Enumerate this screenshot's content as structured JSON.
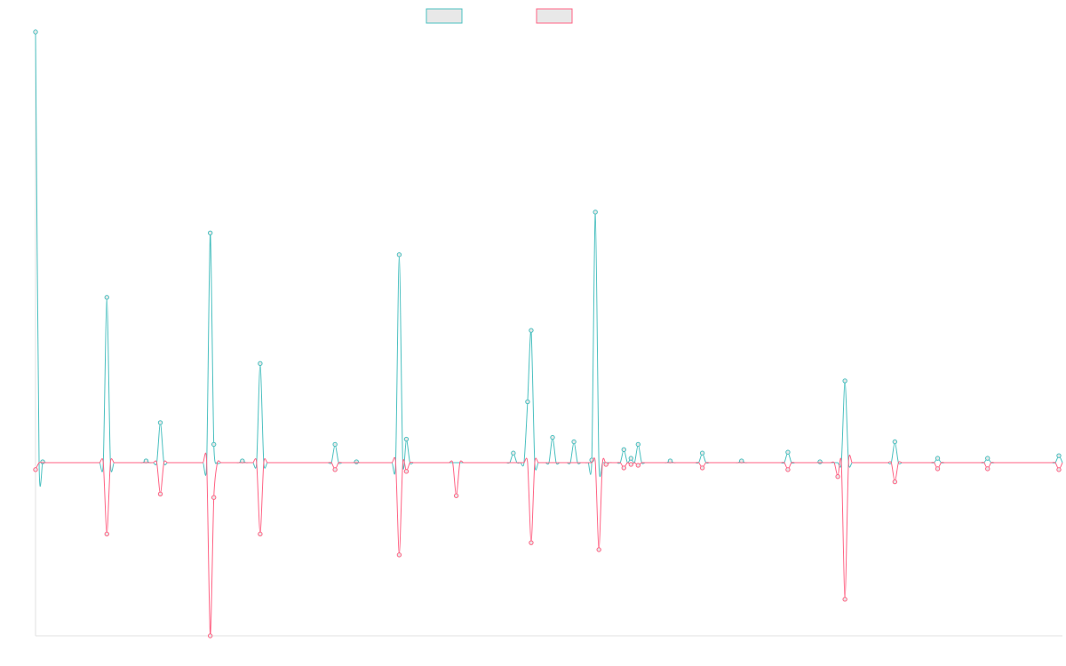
{
  "chart_data": {
    "type": "line",
    "title": "",
    "xlabel": "",
    "ylabel": "",
    "legend": {
      "position": "top-center"
    },
    "grid": false,
    "x": [
      0,
      1,
      2,
      3,
      4,
      5,
      6,
      7,
      8,
      9,
      10,
      11,
      12,
      13,
      14,
      15,
      16,
      17,
      18,
      19,
      20,
      21,
      22,
      23,
      24,
      25,
      26,
      27,
      28,
      29,
      30,
      31,
      32,
      33,
      34,
      35,
      36,
      37,
      38,
      39,
      40,
      41,
      42,
      43,
      44,
      45,
      46,
      47,
      48,
      49,
      50,
      51,
      52,
      53,
      54,
      55,
      56,
      57,
      58,
      59,
      60,
      61,
      62,
      63,
      64,
      65,
      66,
      67,
      68,
      69,
      70,
      71,
      72,
      73,
      74,
      75,
      76,
      77,
      78,
      79,
      80,
      81,
      82,
      83,
      84,
      85,
      86,
      87,
      88,
      89,
      90,
      91,
      92,
      93,
      94,
      95,
      96,
      97,
      98,
      99,
      100,
      101,
      102,
      103,
      104,
      105,
      106,
      107,
      108,
      109,
      110,
      111,
      112,
      113,
      114,
      115,
      116,
      117,
      118,
      119,
      120,
      121,
      122,
      123,
      124,
      125,
      126,
      127,
      128,
      129,
      130,
      131,
      132,
      133,
      134,
      135,
      136,
      137,
      138,
      139,
      140,
      141,
      142,
      143,
      144,
      145,
      146,
      147,
      148,
      149,
      150,
      151,
      152,
      153,
      154,
      155,
      156,
      157,
      158,
      159,
      160,
      161,
      162,
      163,
      164,
      165,
      166,
      167,
      168,
      169,
      170,
      171,
      172,
      173,
      174,
      175,
      176,
      177,
      178,
      179,
      180,
      181,
      182,
      183,
      184,
      185,
      186,
      187,
      188,
      189,
      190,
      191,
      192,
      193,
      194,
      195,
      196,
      197,
      198,
      199,
      200,
      201,
      202,
      203,
      204,
      205,
      206,
      207,
      208,
      209,
      210,
      211,
      212,
      213,
      214,
      215,
      216,
      217,
      218,
      219,
      220,
      221,
      222,
      223,
      224,
      225,
      226,
      227,
      228,
      229,
      230,
      231,
      232,
      233,
      234,
      235,
      236,
      237,
      238,
      239,
      240,
      241,
      242,
      243,
      244,
      245,
      246,
      247,
      248,
      249,
      250,
      251,
      252,
      253,
      254,
      255,
      256,
      257,
      258,
      259,
      260,
      261,
      262,
      263,
      264,
      265,
      266,
      267,
      268,
      269,
      270,
      271,
      272,
      273,
      274,
      275,
      276,
      277,
      278,
      279,
      280,
      281,
      282,
      283,
      284,
      285,
      286,
      287,
      288
    ],
    "ylim": [
      -199,
      495
    ],
    "series": [
      {
        "color": "#4bc0c0",
        "fill": "#e8e8e8",
        "spikes": {
          "0": 495,
          "2": 1,
          "20": 190,
          "31": 2,
          "35": 46,
          "49": 264,
          "50": 21,
          "58": 2,
          "63": 114,
          "84": 21,
          "90": 1,
          "102": 239,
          "104": 27,
          "134": 11,
          "138": 70,
          "139": 152,
          "145": 29,
          "151": 24,
          "156": 3,
          "157": 288,
          "165": 15,
          "167": 5,
          "169": 21,
          "178": 2,
          "187": 11,
          "198": 2,
          "211": 12,
          "220": 1,
          "227": 94,
          "241": 24,
          "253": 5,
          "267": 5,
          "287": 8
        }
      },
      {
        "color": "#ff6384",
        "fill": "#e8e8e8",
        "spikes": {
          "0": -8,
          "20": -82,
          "35": -36,
          "49": -199,
          "50": -40,
          "63": -82,
          "84": -8,
          "102": -106,
          "104": -10,
          "118": -38,
          "139": -92,
          "158": -100,
          "160": -2,
          "165": -6,
          "167": -2,
          "169": -3,
          "187": -6,
          "211": -8,
          "225": -16,
          "227": -157,
          "241": -22,
          "253": -7,
          "267": -7,
          "287": -8
        }
      }
    ]
  }
}
